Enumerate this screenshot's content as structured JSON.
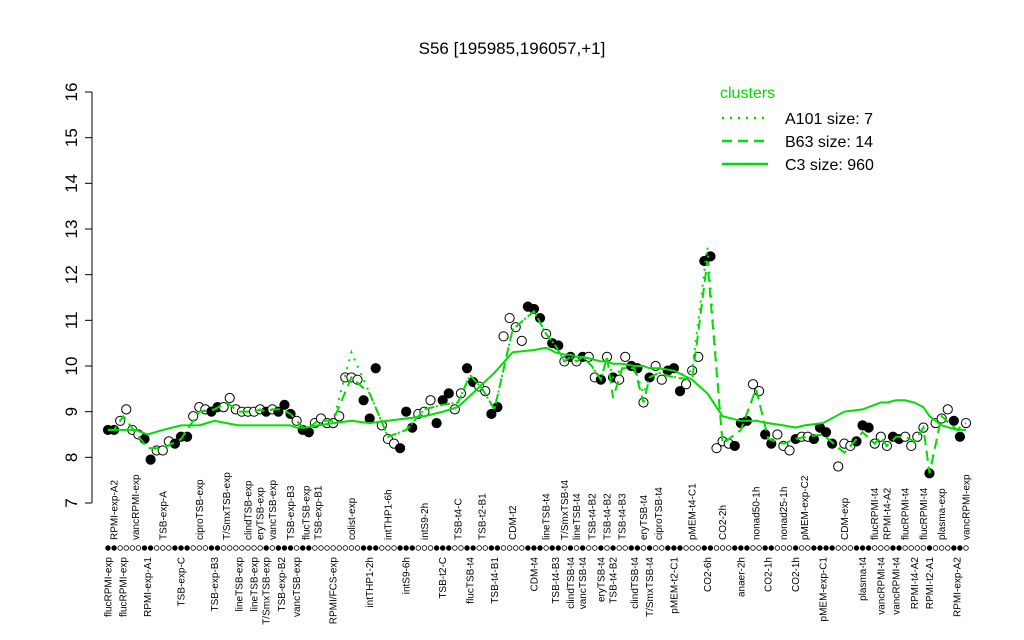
{
  "chart_data": {
    "type": "cluster-dot",
    "title": "S56 [195985,196057,+1]",
    "ylim": [
      7,
      16
    ],
    "yticks": [
      7,
      8,
      9,
      10,
      11,
      12,
      13,
      14,
      15,
      16
    ],
    "legend_title": "clusters",
    "legend_position": "top-right",
    "point_color": "#000000",
    "groups": [
      {
        "label": "flucRPMI-exp",
        "side": "bottom",
        "filled": true,
        "values": [
          8.6
        ]
      },
      {
        "label": "RPMI-exp-A2",
        "side": "top",
        "filled": true,
        "values": [
          8.6
        ]
      },
      {
        "label": "flucRPMI-exp",
        "side": "bottom",
        "filled": false,
        "values": [
          8.8,
          9.05
        ]
      },
      {
        "label": "vancRPMI-exp",
        "side": "top",
        "filled": false,
        "values": [
          8.6,
          8.5
        ]
      },
      {
        "label": "RPMI-exp-A1",
        "side": "bottom",
        "filled": true,
        "values": [
          8.4,
          7.95
        ]
      },
      {
        "label": "TSB-exp-A",
        "side": "top",
        "filled": false,
        "values": [
          8.15,
          8.15,
          8.35
        ]
      },
      {
        "label": "TSB-exp-C",
        "side": "bottom",
        "filled": true,
        "values": [
          8.3,
          8.45,
          8.45
        ]
      },
      {
        "label": "ciproTSB-exp",
        "side": "top",
        "filled": false,
        "values": [
          8.9,
          9.1,
          9.05
        ]
      },
      {
        "label": "TSB-exp-B3",
        "side": "bottom",
        "filled": true,
        "values": [
          9.0,
          9.1
        ]
      },
      {
        "label": "T/SmxTSB-exp",
        "side": "top",
        "filled": false,
        "values": [
          9.1,
          9.3
        ]
      },
      {
        "label": "lineTSB-exp",
        "side": "bottom",
        "filled": false,
        "values": [
          9.05,
          9.0
        ]
      },
      {
        "label": "clindTSB-exp",
        "side": "top",
        "filled": false,
        "values": [
          9.0
        ]
      },
      {
        "label": "lineTSB-exp",
        "side": "bottom",
        "filled": false,
        "values": [
          9.0
        ]
      },
      {
        "label": "eryTSB-exp",
        "side": "top",
        "filled": false,
        "values": [
          9.05
        ]
      },
      {
        "label": "T/SmxTSB-exp",
        "side": "bottom",
        "filled": true,
        "values": [
          9.0
        ]
      },
      {
        "label": "vancTSB-exp",
        "side": "top",
        "filled": false,
        "values": [
          9.05
        ]
      },
      {
        "label": "TSB-exp-B2",
        "side": "bottom",
        "filled": true,
        "values": [
          9.0,
          9.15
        ]
      },
      {
        "label": "TSB-exp-B3",
        "side": "top",
        "filled": true,
        "values": [
          8.95
        ]
      },
      {
        "label": "vancTSB-exp",
        "side": "bottom",
        "filled": false,
        "values": [
          8.8
        ]
      },
      {
        "label": "flucTSB-exp",
        "side": "top",
        "filled": true,
        "values": [
          8.6,
          8.55
        ]
      },
      {
        "label": "TSB-exp-B1",
        "side": "top",
        "filled": false,
        "values": [
          8.75,
          8.85
        ]
      },
      {
        "label": "RPMI/FCS-exp",
        "side": "bottom",
        "filled": false,
        "values": [
          8.75,
          8.75,
          8.9
        ]
      },
      {
        "label": "colist-exp",
        "side": "top",
        "filled": false,
        "values": [
          9.75,
          9.75,
          9.7
        ]
      },
      {
        "label": "intTHP1-2h",
        "side": "bottom",
        "filled": true,
        "values": [
          9.25,
          8.85,
          9.95
        ]
      },
      {
        "label": "intTHP1-6h",
        "side": "top",
        "filled": false,
        "values": [
          8.7,
          8.4,
          8.3
        ]
      },
      {
        "label": "intS9-6h",
        "side": "bottom",
        "filled": true,
        "values": [
          8.2,
          9.0,
          8.65
        ]
      },
      {
        "label": "intS9-2h",
        "side": "top",
        "filled": false,
        "values": [
          8.95,
          9.0,
          9.25
        ]
      },
      {
        "label": "TSB-t2-C",
        "side": "bottom",
        "filled": true,
        "values": [
          8.75,
          9.25,
          9.4
        ]
      },
      {
        "label": "TSB-t4-C",
        "side": "top",
        "filled": false,
        "values": [
          9.05,
          9.4
        ]
      },
      {
        "label": "flucTSB-t4",
        "side": "bottom",
        "filled": true,
        "values": [
          9.95,
          9.65
        ]
      },
      {
        "label": "TSB-t2-B1",
        "side": "top",
        "filled": false,
        "values": [
          9.55,
          9.45
        ]
      },
      {
        "label": "TSB-t4-B1",
        "side": "bottom",
        "filled": true,
        "values": [
          8.95,
          9.1
        ]
      },
      {
        "label": "CDM-t2",
        "side": "top",
        "filled": false,
        "values": [
          10.65,
          11.05,
          10.85,
          10.55
        ]
      },
      {
        "label": "CDM-t4",
        "side": "bottom",
        "filled": true,
        "values": [
          11.3,
          11.25,
          11.05
        ]
      },
      {
        "label": "lineTSB-t4",
        "side": "top",
        "filled": false,
        "values": [
          10.7
        ]
      },
      {
        "label": "TSB-t4-B3",
        "side": "bottom",
        "filled": true,
        "values": [
          10.5,
          10.45
        ]
      },
      {
        "label": "T/SmxTSB-t4",
        "side": "top",
        "filled": false,
        "values": [
          10.1
        ]
      },
      {
        "label": "clindTSB-t4",
        "side": "bottom",
        "filled": true,
        "values": [
          10.2
        ]
      },
      {
        "label": "lineTSB-t4",
        "side": "top",
        "filled": false,
        "values": [
          10.1
        ]
      },
      {
        "label": "vancTSB-t4",
        "side": "bottom",
        "filled": true,
        "values": [
          10.2
        ]
      },
      {
        "label": "TSB-t4-B2",
        "side": "top",
        "filled": false,
        "values": [
          10.2,
          9.75
        ]
      },
      {
        "label": "eryTSB-t4",
        "side": "bottom",
        "filled": true,
        "values": [
          9.7
        ]
      },
      {
        "label": "TSB-t4-B2",
        "side": "top",
        "filled": false,
        "values": [
          10.2
        ]
      },
      {
        "label": "TSB-t4-B2",
        "side": "bottom",
        "filled": true,
        "values": [
          9.75
        ]
      },
      {
        "label": "TSB-t4-B3",
        "side": "top",
        "filled": false,
        "values": [
          9.7,
          10.2
        ]
      },
      {
        "label": "clindTSB-t4",
        "side": "bottom",
        "filled": true,
        "values": [
          10.0,
          9.95
        ]
      },
      {
        "label": "eryTSB-t4",
        "side": "top",
        "filled": false,
        "values": [
          9.2
        ]
      },
      {
        "label": "T/SmxTSB-t4",
        "side": "bottom",
        "filled": true,
        "values": [
          9.75
        ]
      },
      {
        "label": "ciproTSB-t4",
        "side": "top",
        "filled": false,
        "values": [
          10.0,
          9.7
        ]
      },
      {
        "label": "pMEM-t2-C1",
        "side": "bottom",
        "filled": true,
        "values": [
          9.9,
          9.95,
          9.45
        ]
      },
      {
        "label": "pMEM-t4-C1",
        "side": "top",
        "filled": false,
        "values": [
          9.6,
          9.9,
          10.2
        ]
      },
      {
        "label": "CO2-6h",
        "side": "bottom",
        "filled": true,
        "values": [
          12.3,
          12.4
        ]
      },
      {
        "label": "CO2-2h",
        "side": "top",
        "filled": false,
        "values": [
          8.2,
          8.35,
          8.3
        ]
      },
      {
        "label": "anaer-2h",
        "side": "bottom",
        "filled": true,
        "values": [
          8.25,
          8.75,
          8.8
        ]
      },
      {
        "label": "nonad50-1h",
        "side": "top",
        "filled": false,
        "values": [
          9.6,
          9.45
        ]
      },
      {
        "label": "CO2-1h",
        "side": "bottom",
        "filled": true,
        "values": [
          8.5,
          8.3
        ]
      },
      {
        "label": "nonad25-1h",
        "side": "top",
        "filled": false,
        "values": [
          8.5,
          8.25,
          8.15
        ]
      },
      {
        "label": "CO2-1h",
        "side": "bottom",
        "filled": true,
        "values": [
          8.4
        ]
      },
      {
        "label": "pMEM-exp-C2",
        "side": "top",
        "filled": false,
        "values": [
          8.45,
          8.45
        ]
      },
      {
        "label": "pMEM-exp-C1",
        "side": "bottom",
        "filled": true,
        "values": [
          8.4,
          8.65,
          8.55,
          8.3
        ]
      },
      {
        "label": "CDM-exp",
        "side": "top",
        "filled": false,
        "values": [
          7.8,
          8.3,
          8.25
        ]
      },
      {
        "label": "plasma-t4",
        "side": "bottom",
        "filled": true,
        "values": [
          8.35,
          8.7,
          8.65
        ]
      },
      {
        "label": "flucRPMI-t4",
        "side": "top",
        "filled": false,
        "values": [
          8.3
        ]
      },
      {
        "label": "vancRPMI-t4",
        "side": "bottom",
        "filled": false,
        "values": [
          8.45
        ]
      },
      {
        "label": "RPMI-t4-A2",
        "side": "top",
        "filled": false,
        "values": [
          8.25
        ]
      },
      {
        "label": "vancRPMI-t4",
        "side": "bottom",
        "filled": true,
        "values": [
          8.45,
          8.4
        ]
      },
      {
        "label": "flucRPMI-t4",
        "side": "top",
        "filled": false,
        "values": [
          8.45
        ]
      },
      {
        "label": "RPMI-t4-A2",
        "side": "bottom",
        "filled": false,
        "values": [
          8.25,
          8.45
        ]
      },
      {
        "label": "flucRPMI-t4",
        "side": "top",
        "filled": false,
        "values": [
          8.65
        ]
      },
      {
        "label": "RPMI-t2-A1",
        "side": "bottom",
        "filled": true,
        "values": [
          7.65
        ]
      },
      {
        "label": "plasma-exp",
        "side": "top",
        "filled": false,
        "values": [
          8.75,
          8.85,
          9.05
        ]
      },
      {
        "label": "RPMI-exp-A2",
        "side": "bottom",
        "filled": true,
        "values": [
          8.8,
          8.45
        ]
      },
      {
        "label": "vancRPMI-exp",
        "side": "top",
        "filled": false,
        "values": [
          8.75
        ]
      }
    ],
    "series": [
      {
        "name": "A101 size: 7",
        "color": "#00dd00",
        "dash": "dotted",
        "values": [
          8.6,
          8.6,
          8.9,
          8.55,
          8.2,
          8.2,
          8.4,
          9.0,
          9.05,
          9.2,
          9.0,
          9.0,
          9.0,
          9.05,
          9.0,
          9.05,
          9.05,
          8.95,
          8.8,
          8.6,
          8.8,
          8.8,
          10.3,
          9.4,
          8.45,
          8.6,
          9.05,
          9.15,
          9.2,
          9.8,
          9.5,
          9.05,
          10.8,
          11.2,
          10.7,
          10.45,
          10.1,
          10.2,
          10.1,
          10.2,
          10.0,
          9.7,
          10.2,
          9.75,
          9.95,
          9.95,
          9.4,
          9.75,
          9.85,
          9.75,
          9.9,
          12.6,
          8.3,
          8.6,
          9.5,
          8.4,
          8.3,
          8.4,
          8.45,
          8.5,
          8.1,
          8.55,
          8.3,
          8.45,
          8.25,
          8.45,
          8.45,
          8.35,
          8.65,
          7.65,
          8.9,
          8.6,
          8.75
        ]
      },
      {
        "name": "B63 size: 14",
        "color": "#00dd00",
        "dash": "dashed",
        "values": [
          8.6,
          8.6,
          8.9,
          8.55,
          8.2,
          8.2,
          8.4,
          9.0,
          9.05,
          9.2,
          9.0,
          9.0,
          9.0,
          9.05,
          9.0,
          9.05,
          9.05,
          8.95,
          8.8,
          8.6,
          8.8,
          8.8,
          9.75,
          9.4,
          8.45,
          8.6,
          9.05,
          9.15,
          9.2,
          9.8,
          9.5,
          9.05,
          10.8,
          11.2,
          10.7,
          10.45,
          10.1,
          10.2,
          10.1,
          10.2,
          10.0,
          9.7,
          10.2,
          9.3,
          9.95,
          9.95,
          9.2,
          9.75,
          9.85,
          9.75,
          9.7,
          12.3,
          8.3,
          8.6,
          9.5,
          8.4,
          8.3,
          8.4,
          8.45,
          8.5,
          8.1,
          8.55,
          8.3,
          8.45,
          8.25,
          8.45,
          8.45,
          8.35,
          8.65,
          7.65,
          8.9,
          8.6,
          8.75
        ]
      },
      {
        "name": "C3 size: 960",
        "color": "#00dd00",
        "dash": "solid",
        "values": [
          8.6,
          8.6,
          8.6,
          8.6,
          8.5,
          8.6,
          8.7,
          8.7,
          8.8,
          8.75,
          8.7,
          8.7,
          8.7,
          8.7,
          8.7,
          8.7,
          8.7,
          8.7,
          8.65,
          8.65,
          8.7,
          8.75,
          8.8,
          8.75,
          8.8,
          8.85,
          8.9,
          9.0,
          9.1,
          9.35,
          9.6,
          9.85,
          10.3,
          10.35,
          10.4,
          10.3,
          10.25,
          10.25,
          10.2,
          10.2,
          10.15,
          10.1,
          10.1,
          10.05,
          10.05,
          10.0,
          10.0,
          9.95,
          9.95,
          9.9,
          9.7,
          9.4,
          8.9,
          8.8,
          8.8,
          8.75,
          8.7,
          8.65,
          8.7,
          8.75,
          9.0,
          9.05,
          9.15,
          9.2,
          9.2,
          9.25,
          9.25,
          9.2,
          9.1,
          8.9,
          8.7,
          8.6,
          8.6
        ]
      }
    ]
  }
}
